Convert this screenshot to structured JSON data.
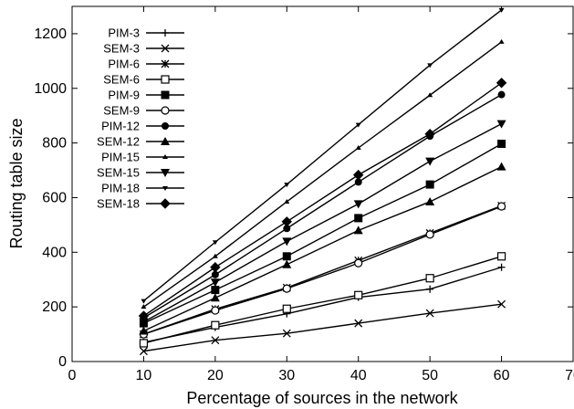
{
  "chart_data": {
    "type": "line",
    "title": "",
    "xlabel": "Percentage of sources in the network",
    "ylabel": "Routing table size",
    "xlim": [
      0,
      70
    ],
    "ylim": [
      0,
      1300
    ],
    "xticks": [
      0,
      10,
      20,
      30,
      40,
      50,
      60,
      70
    ],
    "yticks": [
      0,
      200,
      400,
      600,
      800,
      1000,
      1200
    ],
    "grid": false,
    "legend_position": "top-left",
    "x": [
      10,
      20,
      30,
      40,
      50,
      60
    ],
    "series": [
      {
        "name": "PIM-3",
        "marker": "plus",
        "values": [
          70,
          125,
          175,
          235,
          265,
          345
        ]
      },
      {
        "name": "SEM-3",
        "marker": "x",
        "values": [
          38,
          78,
          103,
          140,
          177,
          210
        ]
      },
      {
        "name": "PIM-6",
        "marker": "star",
        "values": [
          100,
          192,
          270,
          370,
          470,
          570
        ]
      },
      {
        "name": "SEM-6",
        "marker": "square-open",
        "values": [
          67,
          133,
          193,
          243,
          305,
          385
        ]
      },
      {
        "name": "PIM-9",
        "marker": "square-filled",
        "values": [
          140,
          262,
          385,
          525,
          648,
          797
        ]
      },
      {
        "name": "SEM-9",
        "marker": "circle-open",
        "values": [
          100,
          187,
          267,
          360,
          465,
          568
        ]
      },
      {
        "name": "PIM-12",
        "marker": "circle-filled",
        "values": [
          160,
          318,
          487,
          657,
          825,
          977
        ]
      },
      {
        "name": "SEM-12",
        "marker": "triangle-up",
        "values": [
          112,
          233,
          355,
          480,
          585,
          713
        ]
      },
      {
        "name": "PIM-15",
        "marker": "small-triangle",
        "values": [
          200,
          385,
          585,
          782,
          975,
          1170
        ]
      },
      {
        "name": "SEM-15",
        "marker": "triangle-down",
        "values": [
          145,
          290,
          440,
          577,
          733,
          870
        ]
      },
      {
        "name": "PIM-18",
        "marker": "small-tri-down",
        "values": [
          222,
          437,
          648,
          867,
          1085,
          1287
        ]
      },
      {
        "name": "SEM-18",
        "marker": "diamond-filled",
        "values": [
          167,
          345,
          512,
          683,
          833,
          1020
        ]
      }
    ]
  }
}
